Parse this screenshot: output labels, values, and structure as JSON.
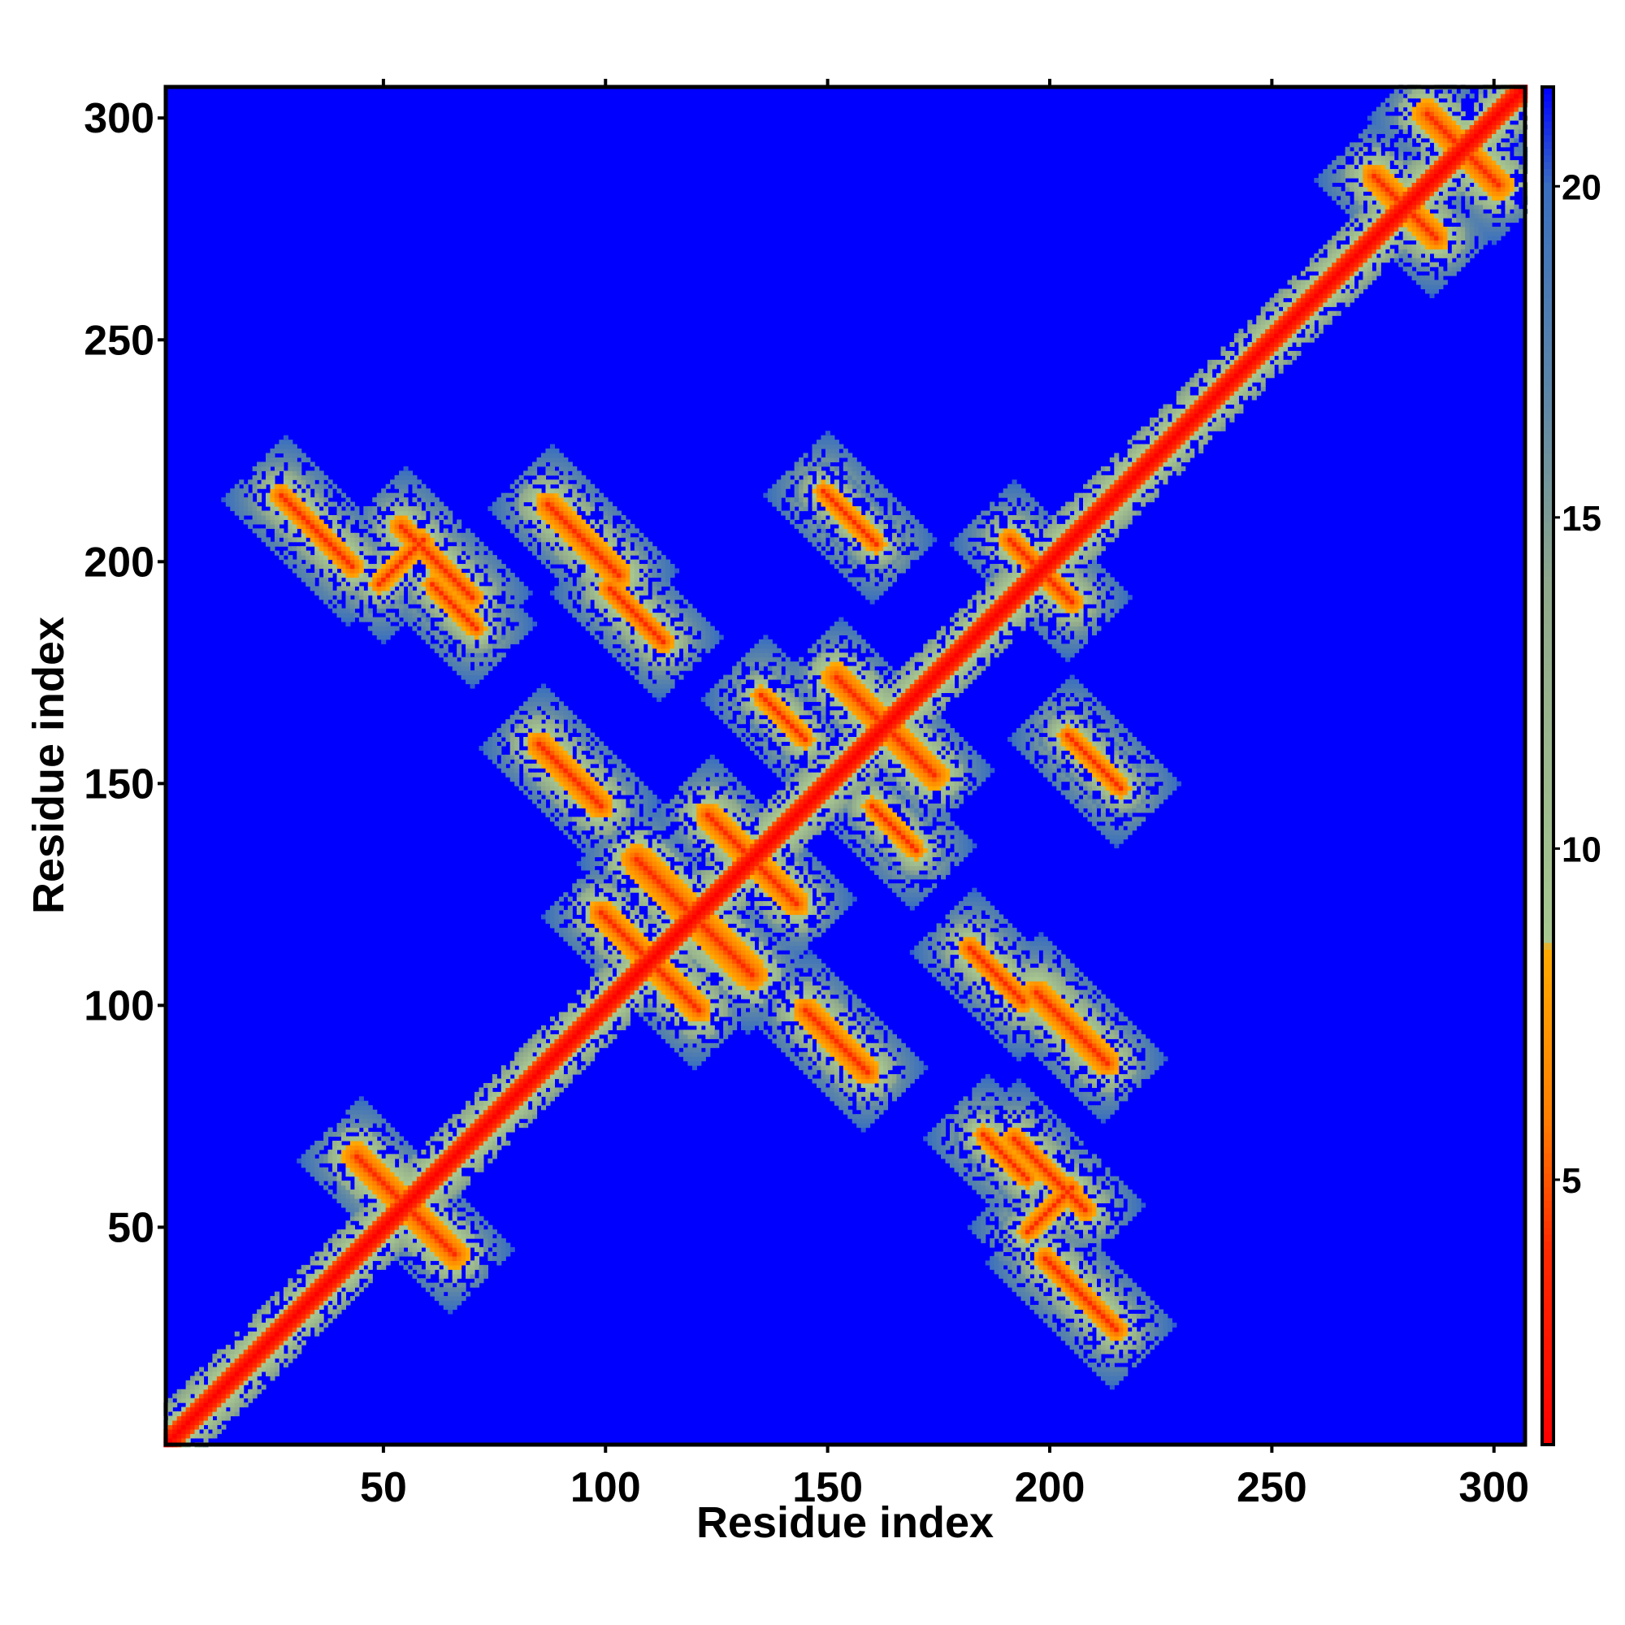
{
  "chart_data": {
    "type": "heatmap",
    "title": "",
    "xlabel": "Residue index",
    "ylabel": "Residue index",
    "xlim": [
      1,
      307
    ],
    "ylim": [
      1,
      307
    ],
    "x_ticks": [
      50,
      100,
      150,
      200,
      250,
      300
    ],
    "y_ticks": [
      50,
      100,
      150,
      200,
      250,
      300
    ],
    "colorbar": {
      "range": [
        1,
        21.5
      ],
      "ticks": [
        5,
        10,
        15,
        20
      ],
      "tick_labels": [
        "5",
        "10",
        "15",
        "20"
      ],
      "stops": [
        {
          "value": 1,
          "color": "#ff0000"
        },
        {
          "value": 4,
          "color": "#ff2a00"
        },
        {
          "value": 6,
          "color": "#ff8000"
        },
        {
          "value": 8.5,
          "color": "#ffaa00"
        },
        {
          "value": 8.6,
          "color": "#a8c890"
        },
        {
          "value": 14,
          "color": "#8fa88c"
        },
        {
          "value": 17,
          "color": "#5b85a8"
        },
        {
          "value": 20,
          "color": "#3a6fc0"
        },
        {
          "value": 21.5,
          "color": "#0000ff"
        }
      ]
    },
    "background_value": 21.5,
    "colors": {
      "background": "#0000ff",
      "diagonal": "#ff0000",
      "near_contact": "#ff8000",
      "mid_contact": "#a9c79a"
    },
    "diagonal_band": [
      {
        "from": 1,
        "to": 307,
        "half_width": 9
      }
    ],
    "contact_features": [
      {
        "kind": "antiparallel",
        "center": [
          55,
          55
        ],
        "length": 22,
        "strength": 0.9
      },
      {
        "kind": "antiparallel",
        "center": [
          120,
          120
        ],
        "length": 26,
        "strength": 1.0
      },
      {
        "kind": "antiparallel",
        "center": [
          133,
          133
        ],
        "length": 20,
        "strength": 0.8
      },
      {
        "kind": "antiparallel",
        "center": [
          110,
          110
        ],
        "length": 22,
        "strength": 0.8
      },
      {
        "kind": "antiparallel",
        "center": [
          163,
          163
        ],
        "length": 22,
        "strength": 0.9
      },
      {
        "kind": "antiparallel",
        "center": [
          198,
          198
        ],
        "length": 14,
        "strength": 0.7
      },
      {
        "kind": "antiparallel",
        "center": [
          280,
          280
        ],
        "length": 14,
        "strength": 0.8
      },
      {
        "kind": "antiparallel",
        "center": [
          293,
          293
        ],
        "length": 16,
        "strength": 0.9
      },
      {
        "kind": "antiparallel",
        "center": [
          35,
          207
        ],
        "length": 16,
        "strength": 0.7
      },
      {
        "kind": "antiparallel",
        "center": [
          62,
          200
        ],
        "length": 16,
        "strength": 0.7
      },
      {
        "kind": "antiparallel",
        "center": [
          95,
          205
        ],
        "length": 16,
        "strength": 0.8
      },
      {
        "kind": "antiparallel",
        "center": [
          107,
          188
        ],
        "length": 12,
        "strength": 0.7
      },
      {
        "kind": "antiparallel",
        "center": [
          92,
          152
        ],
        "length": 14,
        "strength": 0.8
      },
      {
        "kind": "antiparallel",
        "center": [
          152,
          92
        ],
        "length": 14,
        "strength": 0.8
      },
      {
        "kind": "antiparallel",
        "center": [
          188,
          107
        ],
        "length": 12,
        "strength": 0.7
      },
      {
        "kind": "antiparallel",
        "center": [
          207,
          35
        ],
        "length": 16,
        "strength": 0.7
      },
      {
        "kind": "antiparallel",
        "center": [
          205,
          95
        ],
        "length": 16,
        "strength": 0.8
      },
      {
        "kind": "antiparallel",
        "center": [
          200,
          62
        ],
        "length": 16,
        "strength": 0.7
      },
      {
        "kind": "antiparallel",
        "center": [
          190,
          66
        ],
        "length": 10,
        "strength": 0.6
      },
      {
        "kind": "antiparallel",
        "center": [
          66,
          190
        ],
        "length": 10,
        "strength": 0.6
      },
      {
        "kind": "parallel",
        "center": [
          54,
          200
        ],
        "length": 10,
        "strength": 0.6
      },
      {
        "kind": "parallel",
        "center": [
          200,
          54
        ],
        "length": 10,
        "strength": 0.6
      },
      {
        "kind": "antiparallel",
        "center": [
          140,
          165
        ],
        "length": 10,
        "strength": 0.6
      },
      {
        "kind": "antiparallel",
        "center": [
          165,
          140
        ],
        "length": 10,
        "strength": 0.6
      },
      {
        "kind": "antiparallel",
        "center": [
          210,
          155
        ],
        "length": 12,
        "strength": 0.6
      },
      {
        "kind": "antiparallel",
        "center": [
          155,
          210
        ],
        "length": 12,
        "strength": 0.6
      }
    ]
  }
}
